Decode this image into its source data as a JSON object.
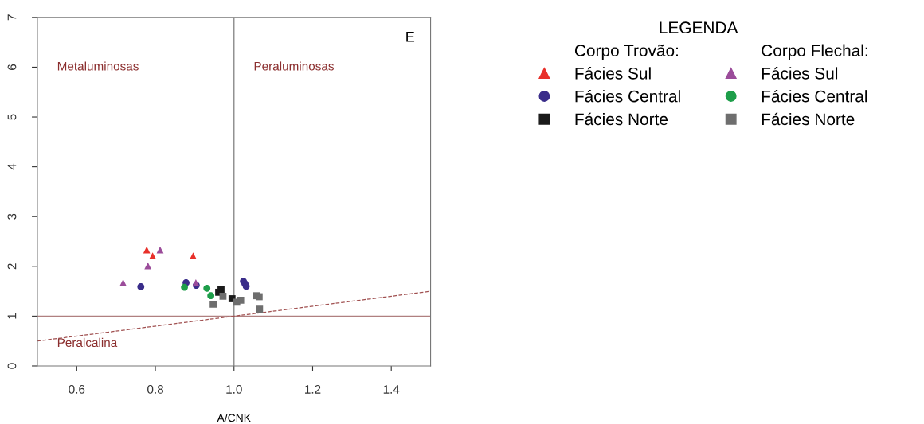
{
  "chart_data": {
    "type": "scatter",
    "xlabel": "A/CNK",
    "legend_title": "LEGENDA",
    "xlim": [
      0.5,
      1.5
    ],
    "ylim": [
      0,
      7
    ],
    "xticks": [
      0.6,
      0.8,
      {
        "value": 1.0,
        "label": "1.0"
      },
      1.2,
      1.4
    ],
    "yticks": [
      0,
      1,
      2,
      3,
      4,
      5,
      6,
      7
    ],
    "grid": false,
    "legend": "right",
    "series": [
      {
        "name": "Fácies Sul",
        "color": "#e8302a",
        "marker": "triangle",
        "x": [
          0.778,
          0.793,
          0.896
        ],
        "values": [
          2.33,
          2.21,
          2.21
        ]
      },
      {
        "name": "Fácies Central",
        "color": "#3a2d8a",
        "marker": "circle",
        "x": [
          0.763,
          0.878,
          0.904,
          1.024,
          1.028,
          1.031
        ],
        "values": [
          1.59,
          1.67,
          1.62,
          1.7,
          1.65,
          1.6
        ]
      },
      {
        "name": "Fácies Norte",
        "color": "#1a1a1a",
        "marker": "square",
        "x": [
          0.967,
          0.961,
          0.995
        ],
        "values": [
          1.54,
          1.48,
          1.35
        ]
      },
      {
        "name": "Fácies Sul",
        "color": "#9b4c9a",
        "marker": "triangle",
        "x": [
          0.812,
          0.781,
          0.718,
          0.903
        ],
        "values": [
          2.33,
          2.01,
          1.67,
          1.67
        ]
      },
      {
        "name": "Fácies Central",
        "color": "#1e9e4a",
        "marker": "circle",
        "x": [
          0.874,
          0.931,
          0.941
        ],
        "values": [
          1.58,
          1.56,
          1.41
        ]
      },
      {
        "name": "Fácies Norte",
        "color": "#6e6e6e",
        "marker": "square",
        "x": [
          0.972,
          0.947,
          1.007,
          1.017,
          1.057,
          1.064,
          1.065
        ],
        "values": [
          1.4,
          1.24,
          1.28,
          1.32,
          1.41,
          1.39,
          1.14
        ]
      },
      {
        "type": "line",
        "color": "#a05050",
        "line_style": "dashed",
        "x": [
          0.5,
          1.5
        ],
        "values": [
          0.5,
          1.5
        ]
      }
    ],
    "ref_lines": [
      {
        "axis": "x",
        "value": 1.0,
        "color": "#8a8a8a"
      },
      {
        "axis": "y",
        "value": 1.0,
        "color": "#b08080"
      }
    ],
    "annotations": [
      "E",
      "Metaluminosas",
      "Peraluminosas",
      "Peralcalina",
      "Corpo Trovão:",
      "Corpo Flechal:"
    ]
  }
}
